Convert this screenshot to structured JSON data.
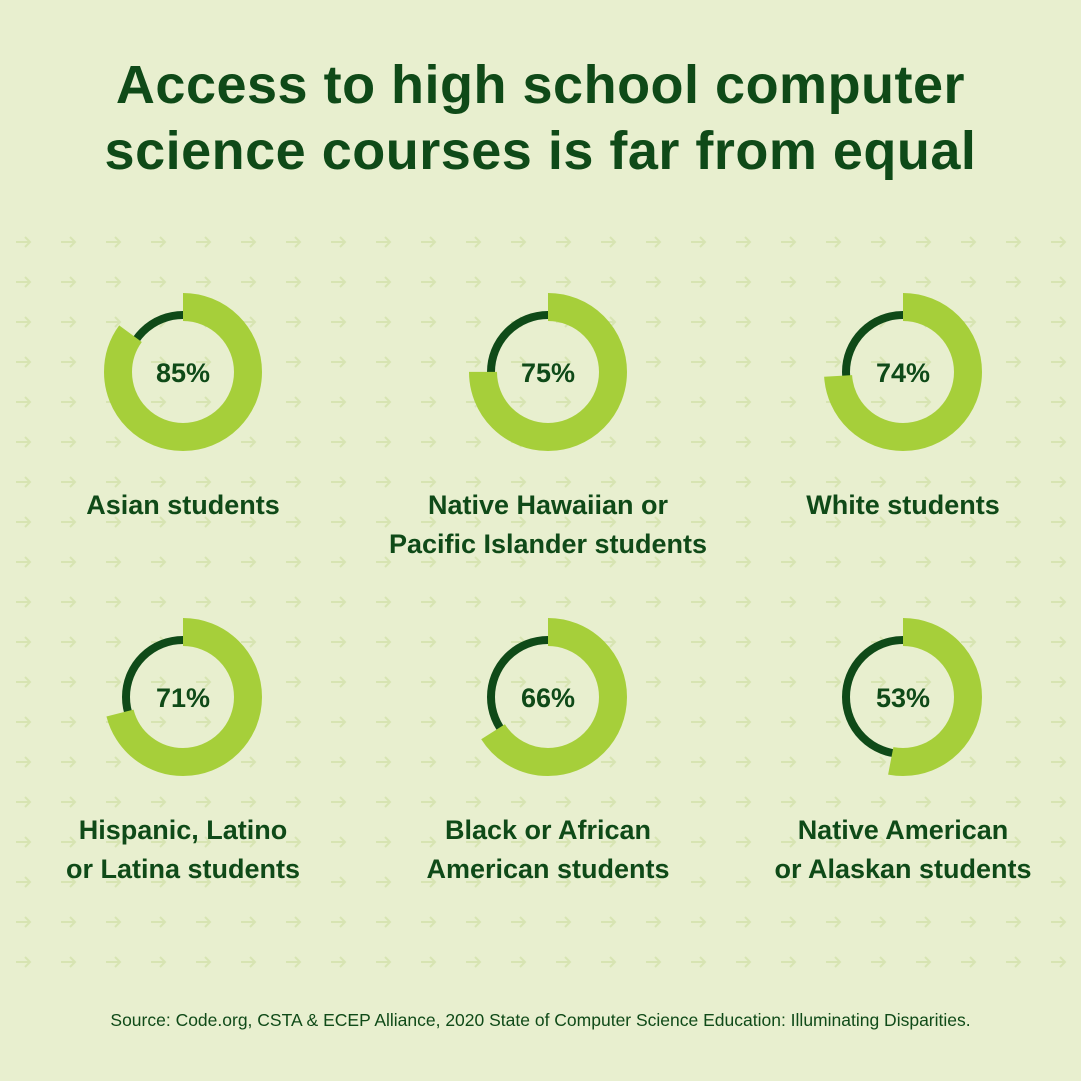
{
  "title_lines": [
    "Access to high school computer",
    "science courses is far from equal"
  ],
  "source": "Source: Code.org, CSTA & ECEP Alliance, 2020 State of Computer Science Education: Illuminating Disparities.",
  "colors": {
    "background": "#e8efcf",
    "fill": "#a6cf3a",
    "remainder": "#0f4a18",
    "text": "#0f4a18",
    "pattern": "#d7e4b2"
  },
  "icons": [
    "arrow-right-icon"
  ],
  "chart_data": {
    "type": "donut",
    "unit": "%",
    "items": [
      {
        "value": 85,
        "label_text": "85%",
        "label_lines": [
          "Asian students"
        ]
      },
      {
        "value": 75,
        "label_text": "75%",
        "label_lines": [
          "Native Hawaiian or",
          "Pacific Islander students"
        ]
      },
      {
        "value": 74,
        "label_text": "74%",
        "label_lines": [
          "White students"
        ]
      },
      {
        "value": 71,
        "label_text": "71%",
        "label_lines": [
          "Hispanic, Latino",
          "or Latina students"
        ]
      },
      {
        "value": 66,
        "label_text": "66%",
        "label_lines": [
          "Black or African",
          "American students"
        ]
      },
      {
        "value": 53,
        "label_text": "53%",
        "label_lines": [
          "Native American",
          "or Alaskan students"
        ]
      }
    ]
  }
}
